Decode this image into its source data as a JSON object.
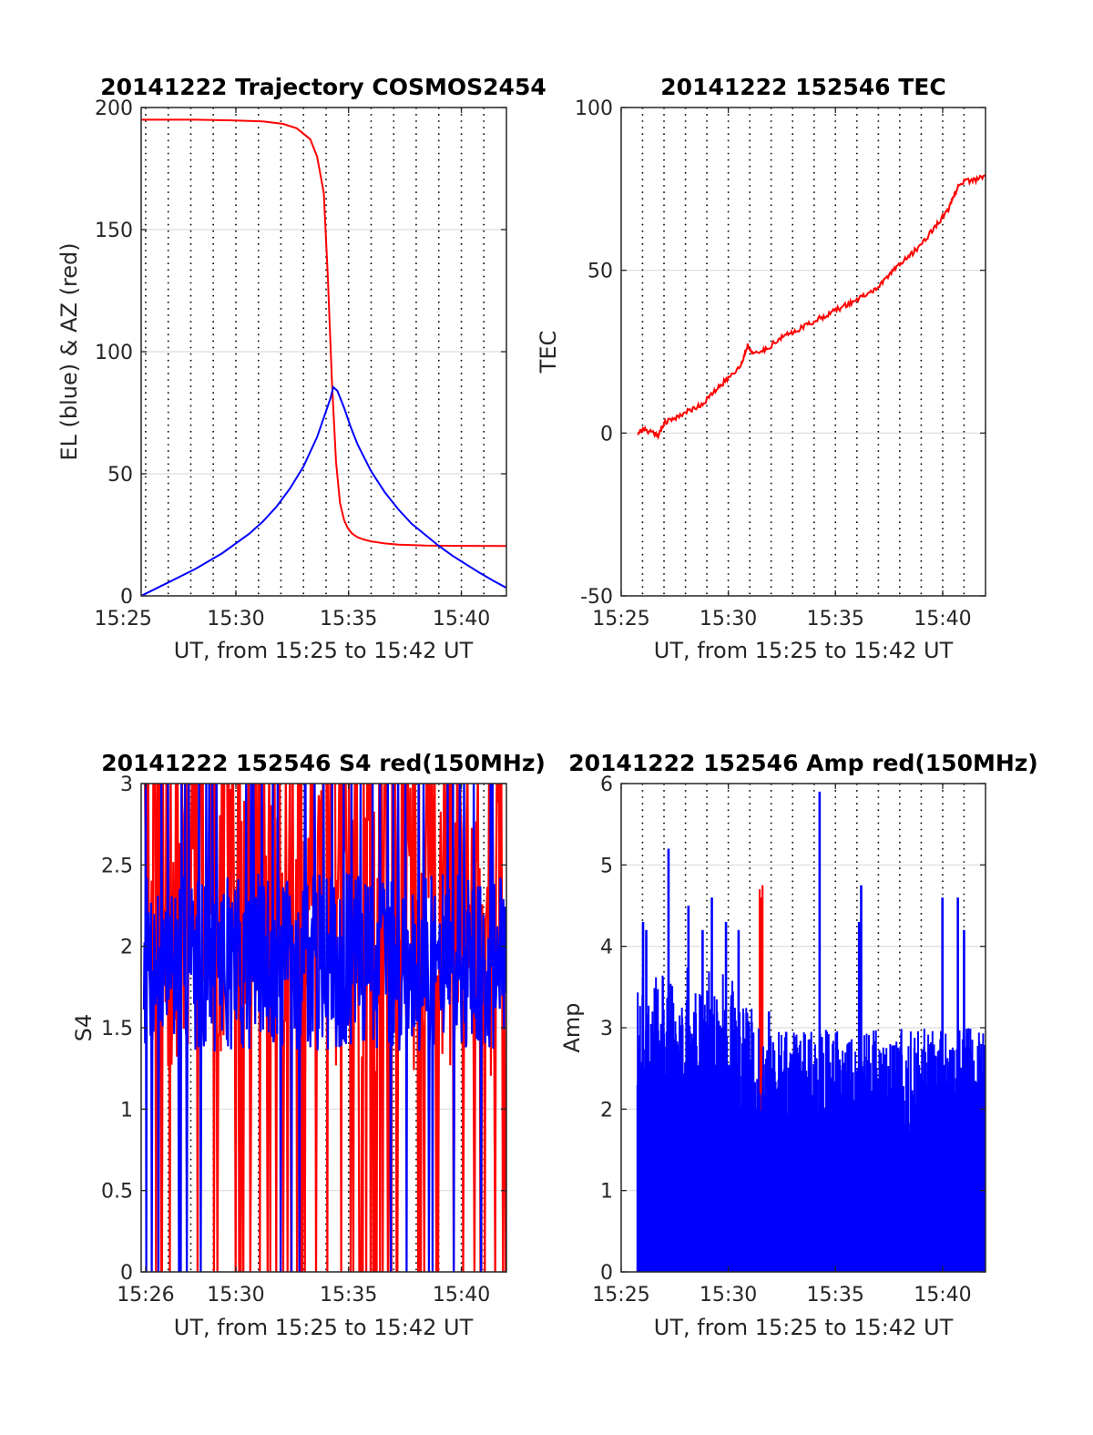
{
  "chart_data": [
    {
      "id": "traj",
      "type": "line",
      "title": "20141222 Trajectory COSMOS2454",
      "xlabel": "UT, from 15:25 to 15:42 UT",
      "ylabel": "EL (blue) & AZ (red)",
      "xlim": [
        15.43,
        15.7
      ],
      "ylim": [
        0,
        200
      ],
      "xticks": [
        {
          "v": 15.4167,
          "label": "15:25"
        },
        {
          "v": 15.5,
          "label": "15:30"
        },
        {
          "v": 15.5833,
          "label": "15:35"
        },
        {
          "v": 15.6667,
          "label": "15:40"
        }
      ],
      "yticks": [
        0,
        50,
        100,
        150,
        200
      ],
      "vlines": [
        15.4333,
        15.45,
        15.4667,
        15.4833,
        15.5,
        15.5167,
        15.5333,
        15.55,
        15.5667,
        15.5833,
        15.6,
        15.6167,
        15.6333,
        15.65,
        15.6667,
        15.6833,
        15.7
      ],
      "grid": true,
      "series": [
        {
          "color": "#ff0000",
          "kind": "line",
          "x": [
            15.43,
            15.47,
            15.5,
            15.52,
            15.535,
            15.545,
            15.555,
            15.56,
            15.565,
            15.568,
            15.571,
            15.574,
            15.577,
            15.58,
            15.583,
            15.586,
            15.59,
            15.595,
            15.6,
            15.61,
            15.62,
            15.63,
            15.64,
            15.66,
            15.7
          ],
          "y": [
            195,
            195,
            194.7,
            194.3,
            193.3,
            191.5,
            187,
            180,
            165,
            130,
            88,
            55,
            38,
            31,
            27.5,
            25.5,
            24,
            23,
            22.3,
            21.5,
            21,
            20.8,
            20.6,
            20.5,
            20.4
          ]
        },
        {
          "color": "#0000ff",
          "kind": "line",
          "x": [
            15.43,
            15.45,
            15.47,
            15.49,
            15.51,
            15.52,
            15.53,
            15.54,
            15.55,
            15.56,
            15.565,
            15.57,
            15.572,
            15.575,
            15.58,
            15.585,
            15.59,
            15.6,
            15.61,
            15.62,
            15.63,
            15.64,
            15.65,
            15.66,
            15.67,
            15.68,
            15.69,
            15.7
          ],
          "y": [
            0,
            5.5,
            11,
            17.5,
            25.5,
            30.5,
            36.5,
            44,
            53,
            65,
            73,
            81,
            85.5,
            84,
            77,
            69,
            62,
            51,
            42.5,
            35.5,
            29.5,
            25,
            20.5,
            16.5,
            13,
            9.5,
            6.3,
            3.3
          ]
        }
      ]
    },
    {
      "id": "tec",
      "type": "line",
      "title": "20141222 152546 TEC",
      "xlabel": "UT, from 15:25 to 15:42 UT",
      "ylabel": "TEC",
      "xlim": [
        15.4167,
        15.7
      ],
      "ylim": [
        -50,
        100
      ],
      "xticks": [
        {
          "v": 15.4167,
          "label": "15:25"
        },
        {
          "v": 15.5,
          "label": "15:30"
        },
        {
          "v": 15.5833,
          "label": "15:35"
        },
        {
          "v": 15.6667,
          "label": "15:40"
        }
      ],
      "yticks": [
        -50,
        0,
        50,
        100
      ],
      "vlines": [
        15.4333,
        15.45,
        15.4667,
        15.4833,
        15.5,
        15.5167,
        15.5333,
        15.55,
        15.5667,
        15.5833,
        15.6,
        15.6167,
        15.6333,
        15.65,
        15.6667,
        15.6833,
        15.7
      ],
      "grid": true,
      "series": [
        {
          "color": "#ff0000",
          "kind": "line",
          "x": [
            15.4293,
            15.433,
            15.44,
            15.446,
            15.45,
            15.46,
            15.47,
            15.48,
            15.49,
            15.5,
            15.51,
            15.515,
            15.52,
            15.53,
            15.54,
            15.55,
            15.56,
            15.57,
            15.58,
            15.59,
            15.6,
            15.61,
            15.62,
            15.63,
            15.64,
            15.65,
            15.66,
            15.67,
            15.675,
            15.68,
            15.69,
            15.7
          ],
          "y": [
            0,
            1,
            0.5,
            -0.5,
            3,
            5,
            7,
            9,
            13,
            17,
            21,
            27,
            24,
            26,
            29,
            31,
            33,
            35,
            37,
            39,
            41,
            43,
            46,
            51,
            54,
            58,
            63,
            68,
            72,
            77,
            77.5,
            79
          ]
        }
      ]
    },
    {
      "id": "s4",
      "type": "line",
      "title": "20141222 152546 S4 red(150MHz)",
      "xlabel": "UT, from 15:25 to 15:42 UT",
      "ylabel": "S4",
      "xlim": [
        15.43,
        15.7
      ],
      "ylim": [
        0,
        3
      ],
      "xticks": [
        {
          "v": 15.4333,
          "label": "15:26"
        },
        {
          "v": 15.5,
          "label": "15:30"
        },
        {
          "v": 15.5833,
          "label": "15:35"
        },
        {
          "v": 15.6667,
          "label": "15:40"
        }
      ],
      "yticks": [
        0,
        0.5,
        1,
        1.5,
        2,
        2.5,
        3
      ],
      "vlines": [
        15.45,
        15.4667,
        15.4833,
        15.5,
        15.5167,
        15.5333,
        15.55,
        15.5667,
        15.5833,
        15.6,
        15.6167,
        15.6333,
        15.65,
        15.6667,
        15.6833
      ],
      "grid": true,
      "series": [
        {
          "color": "#ff0000",
          "kind": "noise",
          "x0": 15.432,
          "x1": 15.7,
          "n": 420,
          "base": 2.1,
          "amp": 0.9,
          "spike": 0.3,
          "spikeDown": 0.14,
          "seed": 11
        },
        {
          "color": "#0000ff",
          "kind": "noise",
          "x0": 15.432,
          "x1": 15.7,
          "n": 600,
          "base": 1.9,
          "amp": 0.55,
          "spike": 0.06,
          "spikeDown": 0.02,
          "seed": 7
        }
      ]
    },
    {
      "id": "amp",
      "type": "line",
      "title": "20141222 152546 Amp red(150MHz)",
      "xlabel": "UT, from 15:25 to 15:42 UT",
      "ylabel": "Amp",
      "xlim": [
        15.4167,
        15.7
      ],
      "ylim": [
        0,
        6
      ],
      "xticks": [
        {
          "v": 15.4167,
          "label": "15:25"
        },
        {
          "v": 15.5,
          "label": "15:30"
        },
        {
          "v": 15.5833,
          "label": "15:35"
        },
        {
          "v": 15.6667,
          "label": "15:40"
        }
      ],
      "yticks": [
        0,
        1,
        2,
        3,
        4,
        5,
        6
      ],
      "vlines": [
        15.4333,
        15.45,
        15.4667,
        15.4833,
        15.5,
        15.5167,
        15.5333,
        15.55,
        15.5667,
        15.5833,
        15.6,
        15.6167,
        15.6333,
        15.65,
        15.6667,
        15.6833,
        15.7
      ],
      "grid": true,
      "series": [
        {
          "color": "#ff0000",
          "kind": "bursts",
          "x": [
            15.5244,
            15.5255,
            15.5266,
            15.5538
          ],
          "y": [
            4.7,
            4.6,
            4.75,
            2.4
          ]
        },
        {
          "color": "#0000ff",
          "kind": "dense",
          "x0": 15.4293,
          "x1": 15.7,
          "n": 900,
          "seed": 3,
          "peaks": [
            [
              15.4337,
              4.3
            ],
            [
              15.4362,
              4.2
            ],
            [
              15.4535,
              5.2
            ],
            [
              15.469,
              4.5
            ],
            [
              15.48,
              4.2
            ],
            [
              15.4872,
              4.6
            ],
            [
              15.4982,
              4.3
            ],
            [
              15.508,
              4.2
            ],
            [
              15.5316,
              3.2
            ],
            [
              15.545,
              2.95
            ],
            [
              15.571,
              5.9
            ],
            [
              15.6033,
              4.75
            ],
            [
              15.6017,
              4.3
            ],
            [
              15.6665,
              4.6
            ],
            [
              15.6785,
              4.6
            ],
            [
              15.6833,
              4.2
            ]
          ]
        }
      ]
    }
  ]
}
